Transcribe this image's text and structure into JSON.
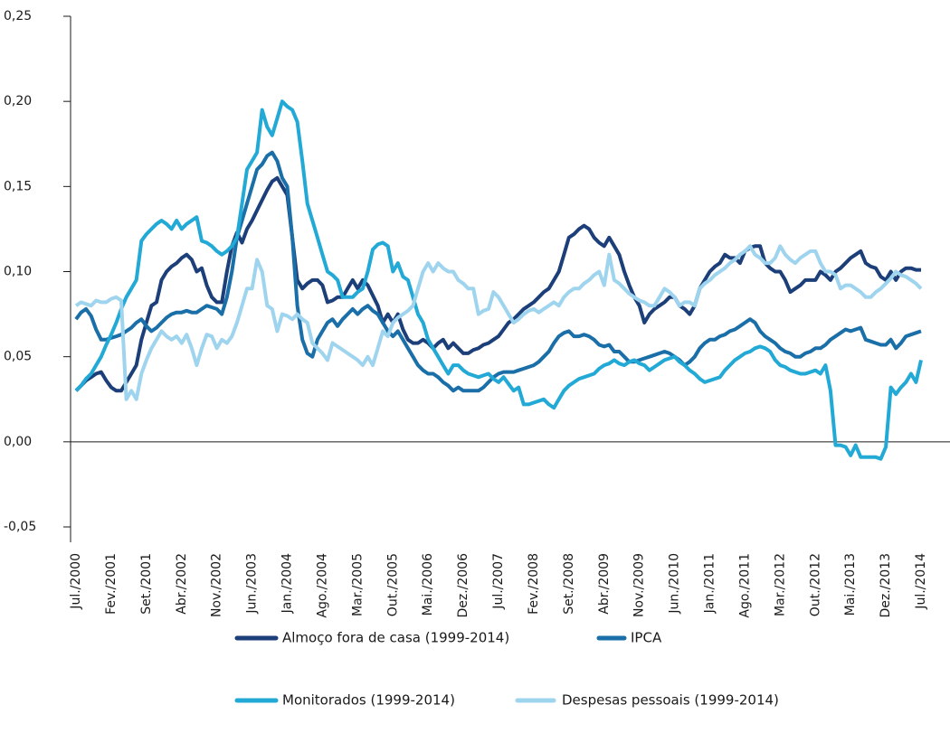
{
  "chart_data": {
    "type": "line",
    "categories": [
      "Jul./2000",
      null,
      null,
      null,
      null,
      null,
      null,
      "Fev./2001",
      null,
      null,
      null,
      null,
      null,
      null,
      "Set./2001",
      null,
      null,
      null,
      null,
      null,
      null,
      "Abr./2002",
      null,
      null,
      null,
      null,
      null,
      null,
      "Nov./2002",
      null,
      null,
      null,
      null,
      null,
      null,
      "Jun./2003",
      null,
      null,
      null,
      null,
      null,
      null,
      "Jan./2004",
      null,
      null,
      null,
      null,
      null,
      null,
      "Ago./2004",
      null,
      null,
      null,
      null,
      null,
      null,
      "Mar./2005",
      null,
      null,
      null,
      null,
      null,
      null,
      "Out./2005",
      null,
      null,
      null,
      null,
      null,
      null,
      "Mai./2006",
      null,
      null,
      null,
      null,
      null,
      null,
      "Dez./2006",
      null,
      null,
      null,
      null,
      null,
      null,
      "Jul./2007",
      null,
      null,
      null,
      null,
      null,
      null,
      "Fev./2008",
      null,
      null,
      null,
      null,
      null,
      null,
      "Set./2008",
      null,
      null,
      null,
      null,
      null,
      null,
      "Abr./2009",
      null,
      null,
      null,
      null,
      null,
      null,
      "Nov./2009",
      null,
      null,
      null,
      null,
      null,
      null,
      "Jun./2010",
      null,
      null,
      null,
      null,
      null,
      null,
      "Jan./2011",
      null,
      null,
      null,
      null,
      null,
      null,
      "Ago./2011",
      null,
      null,
      null,
      null,
      null,
      null,
      "Mar./2012",
      null,
      null,
      null,
      null,
      null,
      null,
      "Out./2012",
      null,
      null,
      null,
      null,
      null,
      null,
      "Mai./2013",
      null,
      null,
      null,
      null,
      null,
      null,
      "Dez./2013",
      null,
      null,
      null,
      null,
      null,
      null,
      "Jul./2014"
    ],
    "series": [
      {
        "name": "Almoço fora de casa (1999-2014)",
        "color": "#1c3f7a",
        "values": [
          0.03,
          0.033,
          0.036,
          0.038,
          0.04,
          0.041,
          0.036,
          0.032,
          0.03,
          0.03,
          0.035,
          0.04,
          0.045,
          0.06,
          0.07,
          0.08,
          0.082,
          0.095,
          0.1,
          0.103,
          0.105,
          0.108,
          0.11,
          0.107,
          0.1,
          0.102,
          0.092,
          0.085,
          0.082,
          0.082,
          0.1,
          0.115,
          0.123,
          0.117,
          0.125,
          0.13,
          0.136,
          0.142,
          0.148,
          0.153,
          0.155,
          0.15,
          0.145,
          0.12,
          0.095,
          0.09,
          0.093,
          0.095,
          0.095,
          0.092,
          0.082,
          0.083,
          0.085,
          0.085,
          0.09,
          0.095,
          0.09,
          0.095,
          0.092,
          0.086,
          0.08,
          0.07,
          0.075,
          0.07,
          0.075,
          0.066,
          0.06,
          0.058,
          0.058,
          0.06,
          0.058,
          0.055,
          0.058,
          0.06,
          0.055,
          0.058,
          0.055,
          0.052,
          0.052,
          0.054,
          0.055,
          0.057,
          0.058,
          0.06,
          0.062,
          0.066,
          0.07,
          0.072,
          0.075,
          0.078,
          0.08,
          0.082,
          0.085,
          0.088,
          0.09,
          0.095,
          0.1,
          0.11,
          0.12,
          0.122,
          0.125,
          0.127,
          0.125,
          0.12,
          0.117,
          0.115,
          0.12,
          0.115,
          0.11,
          0.1,
          0.092,
          0.085,
          0.08,
          0.07,
          0.075,
          0.078,
          0.08,
          0.082,
          0.085,
          0.085,
          0.08,
          0.078,
          0.075,
          0.08,
          0.09,
          0.095,
          0.1,
          0.103,
          0.105,
          0.11,
          0.108,
          0.108,
          0.105,
          0.112,
          0.114,
          0.115,
          0.115,
          0.105,
          0.102,
          0.1,
          0.1,
          0.095,
          0.088,
          0.09,
          0.092,
          0.095,
          0.095,
          0.095,
          0.1,
          0.098,
          0.095,
          0.1,
          0.102,
          0.105,
          0.108,
          0.11,
          0.112,
          0.105,
          0.103,
          0.102,
          0.097,
          0.095,
          0.1,
          0.095,
          0.1,
          0.102,
          0.102,
          0.101,
          0.101
        ]
      },
      {
        "name": "IPCA",
        "color": "#1a6fa8",
        "values": [
          0.072,
          0.076,
          0.078,
          0.074,
          0.066,
          0.06,
          0.06,
          0.061,
          0.062,
          0.063,
          0.065,
          0.067,
          0.07,
          0.072,
          0.068,
          0.065,
          0.067,
          0.07,
          0.073,
          0.075,
          0.076,
          0.076,
          0.077,
          0.076,
          0.076,
          0.078,
          0.08,
          0.079,
          0.078,
          0.075,
          0.085,
          0.1,
          0.12,
          0.13,
          0.14,
          0.15,
          0.16,
          0.163,
          0.168,
          0.17,
          0.165,
          0.155,
          0.15,
          0.12,
          0.08,
          0.06,
          0.052,
          0.05,
          0.06,
          0.065,
          0.07,
          0.072,
          0.068,
          0.072,
          0.075,
          0.078,
          0.075,
          0.078,
          0.08,
          0.077,
          0.075,
          0.07,
          0.065,
          0.062,
          0.065,
          0.06,
          0.055,
          0.05,
          0.045,
          0.042,
          0.04,
          0.04,
          0.038,
          0.035,
          0.033,
          0.03,
          0.032,
          0.03,
          0.03,
          0.03,
          0.03,
          0.032,
          0.035,
          0.038,
          0.04,
          0.041,
          0.041,
          0.041,
          0.042,
          0.043,
          0.044,
          0.045,
          0.047,
          0.05,
          0.053,
          0.058,
          0.062,
          0.064,
          0.065,
          0.062,
          0.062,
          0.063,
          0.062,
          0.06,
          0.057,
          0.056,
          0.057,
          0.053,
          0.053,
          0.05,
          0.047,
          0.047,
          0.048,
          0.049,
          0.05,
          0.051,
          0.052,
          0.053,
          0.052,
          0.05,
          0.048,
          0.045,
          0.047,
          0.05,
          0.055,
          0.058,
          0.06,
          0.06,
          0.062,
          0.063,
          0.065,
          0.066,
          0.068,
          0.07,
          0.072,
          0.07,
          0.065,
          0.062,
          0.06,
          0.058,
          0.055,
          0.053,
          0.052,
          0.05,
          0.05,
          0.052,
          0.053,
          0.055,
          0.055,
          0.057,
          0.06,
          0.062,
          0.064,
          0.066,
          0.065,
          0.066,
          0.067,
          0.06,
          0.059,
          0.058,
          0.057,
          0.057,
          0.06,
          0.055,
          0.058,
          0.062,
          0.063,
          0.064,
          0.065
        ]
      },
      {
        "name": "Monitorados (1999-2014)",
        "color": "#22a9d6",
        "values": [
          0.03,
          0.033,
          0.037,
          0.04,
          0.045,
          0.05,
          0.057,
          0.063,
          0.07,
          0.078,
          0.085,
          0.09,
          0.095,
          0.118,
          0.122,
          0.125,
          0.128,
          0.13,
          0.128,
          0.125,
          0.13,
          0.125,
          0.128,
          0.13,
          0.132,
          0.118,
          0.117,
          0.115,
          0.112,
          0.11,
          0.112,
          0.115,
          0.12,
          0.14,
          0.16,
          0.165,
          0.17,
          0.195,
          0.185,
          0.18,
          0.19,
          0.2,
          0.197,
          0.195,
          0.188,
          0.165,
          0.14,
          0.13,
          0.12,
          0.11,
          0.1,
          0.098,
          0.095,
          0.085,
          0.085,
          0.085,
          0.088,
          0.09,
          0.1,
          0.113,
          0.116,
          0.117,
          0.115,
          0.1,
          0.105,
          0.097,
          0.095,
          0.085,
          0.075,
          0.07,
          0.06,
          0.055,
          0.05,
          0.045,
          0.04,
          0.045,
          0.045,
          0.042,
          0.04,
          0.039,
          0.038,
          0.039,
          0.04,
          0.037,
          0.035,
          0.038,
          0.034,
          0.03,
          0.032,
          0.022,
          0.022,
          0.023,
          0.024,
          0.025,
          0.022,
          0.02,
          0.025,
          0.03,
          0.033,
          0.035,
          0.037,
          0.038,
          0.039,
          0.04,
          0.043,
          0.045,
          0.046,
          0.048,
          0.046,
          0.045,
          0.047,
          0.048,
          0.046,
          0.045,
          0.042,
          0.044,
          0.046,
          0.048,
          0.049,
          0.05,
          0.047,
          0.045,
          0.042,
          0.04,
          0.037,
          0.035,
          0.036,
          0.037,
          0.038,
          0.042,
          0.045,
          0.048,
          0.05,
          0.052,
          0.053,
          0.055,
          0.056,
          0.055,
          0.053,
          0.048,
          0.045,
          0.044,
          0.042,
          0.041,
          0.04,
          0.04,
          0.041,
          0.042,
          0.04,
          0.045,
          0.03,
          -0.002,
          -0.002,
          -0.003,
          -0.008,
          -0.002,
          -0.009,
          -0.009,
          -0.009,
          -0.009,
          -0.01,
          -0.003,
          0.032,
          0.028,
          0.032,
          0.035,
          0.04,
          0.035,
          0.048
        ]
      },
      {
        "name": "Despesas pessoais (1999-2014)",
        "color": "#9fd4ef",
        "values": [
          0.08,
          0.082,
          0.081,
          0.08,
          0.083,
          0.082,
          0.082,
          0.084,
          0.085,
          0.083,
          0.025,
          0.03,
          0.025,
          0.04,
          0.048,
          0.055,
          0.06,
          0.065,
          0.062,
          0.06,
          0.062,
          0.058,
          0.063,
          0.055,
          0.045,
          0.055,
          0.063,
          0.062,
          0.055,
          0.06,
          0.058,
          0.062,
          0.07,
          0.08,
          0.09,
          0.09,
          0.107,
          0.1,
          0.08,
          0.078,
          0.065,
          0.075,
          0.074,
          0.072,
          0.075,
          0.072,
          0.07,
          0.058,
          0.055,
          0.052,
          0.048,
          0.058,
          0.056,
          0.054,
          0.052,
          0.05,
          0.048,
          0.045,
          0.05,
          0.045,
          0.055,
          0.065,
          0.062,
          0.07,
          0.073,
          0.075,
          0.077,
          0.08,
          0.09,
          0.1,
          0.105,
          0.1,
          0.105,
          0.102,
          0.1,
          0.1,
          0.095,
          0.093,
          0.09,
          0.09,
          0.075,
          0.077,
          0.078,
          0.088,
          0.085,
          0.08,
          0.075,
          0.07,
          0.072,
          0.075,
          0.077,
          0.078,
          0.076,
          0.078,
          0.08,
          0.082,
          0.08,
          0.085,
          0.088,
          0.09,
          0.09,
          0.093,
          0.095,
          0.098,
          0.1,
          0.092,
          0.11,
          0.095,
          0.093,
          0.09,
          0.087,
          0.085,
          0.083,
          0.082,
          0.08,
          0.08,
          0.085,
          0.09,
          0.088,
          0.085,
          0.08,
          0.082,
          0.082,
          0.08,
          0.09,
          0.093,
          0.095,
          0.098,
          0.1,
          0.102,
          0.105,
          0.107,
          0.11,
          0.112,
          0.115,
          0.11,
          0.108,
          0.105,
          0.105,
          0.108,
          0.115,
          0.11,
          0.107,
          0.105,
          0.108,
          0.11,
          0.112,
          0.112,
          0.105,
          0.1,
          0.1,
          0.098,
          0.09,
          0.092,
          0.092,
          0.09,
          0.088,
          0.085,
          0.085,
          0.088,
          0.09,
          0.093,
          0.096,
          0.1,
          0.098,
          0.097,
          0.095,
          0.093,
          0.09
        ]
      }
    ],
    "ylim": [
      -0.05,
      0.25
    ],
    "yticks": [
      {
        "value": -0.05,
        "label": "-0,05"
      },
      {
        "value": 0,
        "label": "0,00"
      },
      {
        "value": 0.05,
        "label": "0,05"
      },
      {
        "value": 0.1,
        "label": "0,10"
      },
      {
        "value": 0.15,
        "label": "0,15"
      },
      {
        "value": 0.2,
        "label": "0,20"
      },
      {
        "value": 0.25,
        "label": "0,25"
      }
    ]
  }
}
